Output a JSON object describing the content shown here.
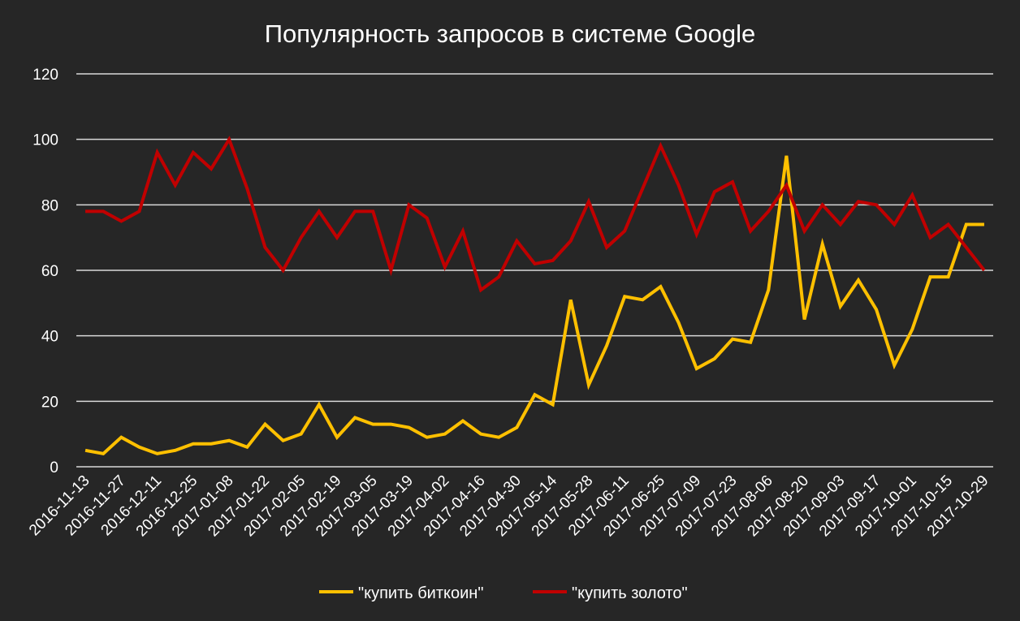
{
  "chart_data": {
    "type": "line",
    "title": "Популярность запросов в системе Google",
    "xlabel": "",
    "ylabel": "",
    "ylim": [
      0,
      120
    ],
    "yticks": [
      "0",
      "20",
      "40",
      "60",
      "80",
      "100",
      "120"
    ],
    "grid": true,
    "legend_position": "bottom",
    "background": "#262626",
    "x": [
      "2016-11-13",
      "2016-11-20",
      "2016-11-27",
      "2016-12-04",
      "2016-12-11",
      "2016-12-18",
      "2016-12-25",
      "2017-01-01",
      "2017-01-08",
      "2017-01-15",
      "2017-01-22",
      "2017-01-29",
      "2017-02-05",
      "2017-02-12",
      "2017-02-19",
      "2017-02-26",
      "2017-03-05",
      "2017-03-12",
      "2017-03-19",
      "2017-03-26",
      "2017-04-02",
      "2017-04-09",
      "2017-04-16",
      "2017-04-23",
      "2017-04-30",
      "2017-05-07",
      "2017-05-14",
      "2017-05-21",
      "2017-05-28",
      "2017-06-04",
      "2017-06-11",
      "2017-06-18",
      "2017-06-25",
      "2017-07-02",
      "2017-07-09",
      "2017-07-16",
      "2017-07-23",
      "2017-07-30",
      "2017-08-06",
      "2017-08-13",
      "2017-08-20",
      "2017-08-27",
      "2017-09-03",
      "2017-09-10",
      "2017-09-17",
      "2017-09-24",
      "2017-10-01",
      "2017-10-08",
      "2017-10-15",
      "2017-10-22",
      "2017-10-29"
    ],
    "xtick_labels": [
      "2016-11-13",
      "2016-11-27",
      "2016-12-11",
      "2016-12-25",
      "2017-01-08",
      "2017-01-22",
      "2017-02-05",
      "2017-02-19",
      "2017-03-05",
      "2017-03-19",
      "2017-04-02",
      "2017-04-16",
      "2017-04-30",
      "2017-05-14",
      "2017-05-28",
      "2017-06-11",
      "2017-06-25",
      "2017-07-09",
      "2017-07-23",
      "2017-08-06",
      "2017-08-20",
      "2017-09-03",
      "2017-09-17",
      "2017-10-01",
      "2017-10-15",
      "2017-10-29"
    ],
    "series": [
      {
        "name": "\"купить биткоин\"",
        "color": "#ffc000",
        "values": [
          5,
          4,
          9,
          6,
          4,
          5,
          7,
          7,
          8,
          6,
          13,
          8,
          10,
          19,
          9,
          15,
          13,
          13,
          12,
          9,
          10,
          14,
          10,
          9,
          12,
          22,
          19,
          51,
          25,
          37,
          52,
          51,
          55,
          44,
          30,
          33,
          39,
          38,
          54,
          95,
          45,
          68,
          49,
          57,
          48,
          31,
          42,
          58,
          58,
          74,
          74
        ]
      },
      {
        "name": "\"купить золото\"",
        "color": "#c00000",
        "values": [
          78,
          78,
          75,
          78,
          96,
          86,
          96,
          91,
          100,
          85,
          67,
          60,
          70,
          78,
          70,
          78,
          78,
          60,
          80,
          76,
          61,
          72,
          54,
          58,
          69,
          62,
          63,
          69,
          81,
          67,
          72,
          85,
          98,
          86,
          71,
          84,
          87,
          72,
          78,
          86,
          72,
          80,
          74,
          81,
          80,
          74,
          83,
          70,
          74,
          67,
          60
        ]
      }
    ]
  }
}
